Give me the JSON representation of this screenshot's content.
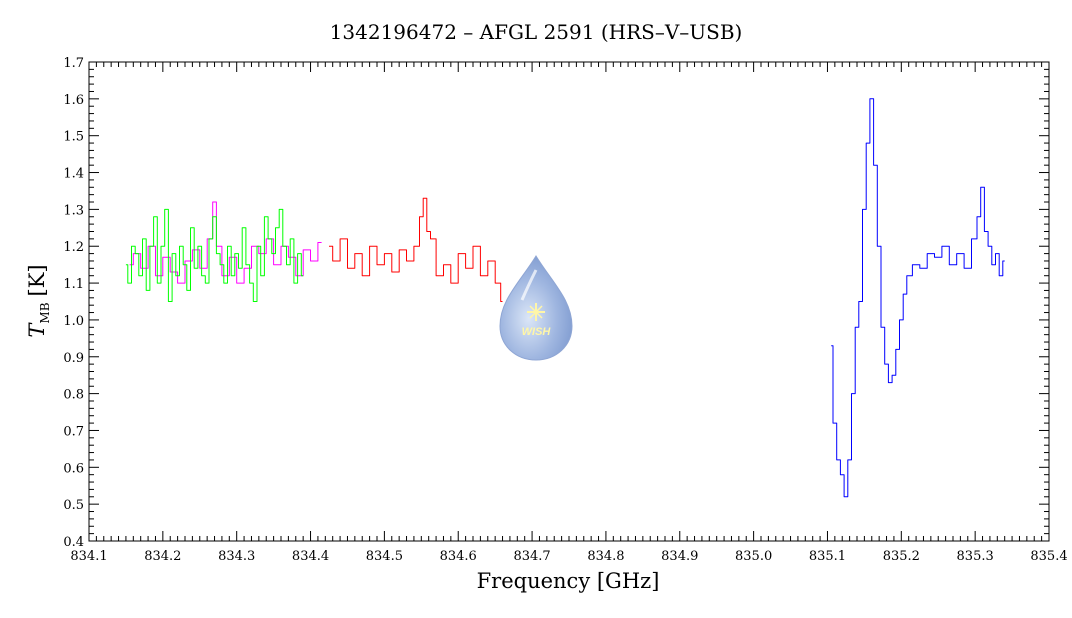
{
  "chart_data": {
    "type": "line",
    "title": "1342196472 – AFGL 2591 (HRS–V–USB)",
    "xlabel": "Frequency [GHz]",
    "ylabel_main": "T",
    "ylabel_sub": "MB",
    "ylabel_unit": "[K]",
    "xlim": [
      834.1,
      835.4
    ],
    "ylim": [
      0.4,
      1.7
    ],
    "x_ticks": [
      "834.1",
      "834.2",
      "834.3",
      "834.4",
      "834.5",
      "834.6",
      "834.7",
      "834.8",
      "834.9",
      "835.0",
      "835.1",
      "835.2",
      "835.3",
      "835.4"
    ],
    "y_ticks": [
      "0.4",
      "0.5",
      "0.6",
      "0.7",
      "0.8",
      "0.9",
      "1.0",
      "1.1",
      "1.2",
      "1.3",
      "1.4",
      "1.5",
      "1.6",
      "1.7"
    ],
    "grid": false,
    "logo_text": "WISH",
    "series": [
      {
        "color": "#ff00ff",
        "x": [
          834.155,
          834.165,
          834.175,
          834.185,
          834.195,
          834.205,
          834.215,
          834.225,
          834.235,
          834.245,
          834.255,
          834.265,
          834.27,
          834.275,
          834.285,
          834.295,
          834.305,
          834.315,
          834.325,
          834.335,
          834.345,
          834.355,
          834.365,
          834.375,
          834.385,
          834.395,
          834.405,
          834.415
        ],
        "y": [
          1.15,
          1.18,
          1.14,
          1.2,
          1.12,
          1.17,
          1.13,
          1.1,
          1.16,
          1.19,
          1.14,
          1.22,
          1.32,
          1.2,
          1.12,
          1.17,
          1.1,
          1.14,
          1.2,
          1.18,
          1.22,
          1.15,
          1.2,
          1.17,
          1.12,
          1.19,
          1.16,
          1.21
        ]
      },
      {
        "color": "#00ff00",
        "x": [
          834.15,
          834.155,
          834.16,
          834.165,
          834.17,
          834.175,
          834.18,
          834.185,
          834.19,
          834.195,
          834.2,
          834.205,
          834.21,
          834.215,
          834.22,
          834.225,
          834.23,
          834.235,
          834.24,
          834.245,
          834.25,
          834.255,
          834.26,
          834.265,
          834.27,
          834.275,
          834.28,
          834.285,
          834.29,
          834.295,
          834.3,
          834.305,
          834.31,
          834.315,
          834.32,
          834.325,
          834.33,
          834.335,
          834.34,
          834.345,
          834.35,
          834.355,
          834.36,
          834.365,
          834.37,
          834.375,
          834.38,
          834.385,
          834.39
        ],
        "y": [
          1.15,
          1.1,
          1.2,
          1.18,
          1.12,
          1.22,
          1.08,
          1.2,
          1.28,
          1.1,
          1.2,
          1.3,
          1.05,
          1.18,
          1.12,
          1.2,
          1.15,
          1.08,
          1.25,
          1.14,
          1.2,
          1.12,
          1.1,
          1.22,
          1.28,
          1.18,
          1.15,
          1.1,
          1.2,
          1.12,
          1.18,
          1.14,
          1.25,
          1.15,
          1.1,
          1.05,
          1.2,
          1.12,
          1.28,
          1.22,
          1.18,
          1.25,
          1.3,
          1.2,
          1.15,
          1.22,
          1.1,
          1.18,
          1.12
        ]
      },
      {
        "color": "#ff0000",
        "x": [
          834.425,
          834.435,
          834.445,
          834.455,
          834.465,
          834.475,
          834.485,
          834.495,
          834.505,
          834.515,
          834.525,
          834.535,
          834.545,
          834.55,
          834.555,
          834.56,
          834.565,
          834.575,
          834.585,
          834.595,
          834.605,
          834.615,
          834.625,
          834.635,
          834.645,
          834.655,
          834.66
        ],
        "y": [
          1.2,
          1.16,
          1.22,
          1.14,
          1.18,
          1.12,
          1.2,
          1.15,
          1.18,
          1.13,
          1.19,
          1.16,
          1.2,
          1.28,
          1.33,
          1.24,
          1.22,
          1.12,
          1.15,
          1.1,
          1.18,
          1.14,
          1.2,
          1.12,
          1.16,
          1.1,
          1.05
        ]
      },
      {
        "color": "#0000ff",
        "x": [
          835.105,
          835.11,
          835.115,
          835.12,
          835.125,
          835.13,
          835.135,
          835.14,
          835.145,
          835.15,
          835.155,
          835.16,
          835.165,
          835.17,
          835.175,
          835.18,
          835.185,
          835.19,
          835.195,
          835.2,
          835.205,
          835.21,
          835.22,
          835.23,
          835.24,
          835.25,
          835.26,
          835.27,
          835.28,
          835.29,
          835.3,
          835.305,
          835.31,
          835.315,
          835.32,
          835.325,
          835.33,
          835.335,
          835.34
        ],
        "y": [
          0.93,
          0.72,
          0.62,
          0.58,
          0.52,
          0.62,
          0.8,
          0.98,
          1.05,
          1.3,
          1.48,
          1.6,
          1.42,
          1.2,
          0.98,
          0.88,
          0.83,
          0.85,
          0.92,
          1.0,
          1.07,
          1.12,
          1.15,
          1.14,
          1.18,
          1.17,
          1.2,
          1.15,
          1.18,
          1.14,
          1.22,
          1.28,
          1.36,
          1.24,
          1.2,
          1.15,
          1.18,
          1.12,
          1.16
        ]
      }
    ]
  }
}
